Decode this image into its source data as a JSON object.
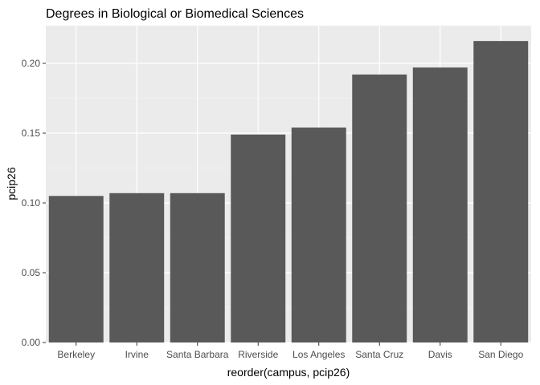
{
  "chart_data": {
    "type": "bar",
    "title": "Degrees in Biological or Biomedical Sciences",
    "xlabel": "reorder(campus, pcip26)",
    "ylabel": "pcip26",
    "categories": [
      "Berkeley",
      "Irvine",
      "Santa Barbara",
      "Riverside",
      "Los Angeles",
      "Santa Cruz",
      "Davis",
      "San Diego"
    ],
    "values": [
      0.105,
      0.107,
      0.107,
      0.149,
      0.154,
      0.192,
      0.197,
      0.216
    ],
    "ylim": [
      0,
      0.227
    ],
    "yticks": [
      0,
      0.05,
      0.1,
      0.15,
      0.2
    ],
    "ytick_labels": [
      "0.00",
      "0.05",
      "0.10",
      "0.15",
      "0.20"
    ],
    "grid": true,
    "legend": "none",
    "colors": {
      "bar": "#595959",
      "panel": "#ebebeb",
      "grid_major": "#ffffff",
      "grid_minor": "#f2f2f2",
      "tick": "#333333"
    }
  }
}
